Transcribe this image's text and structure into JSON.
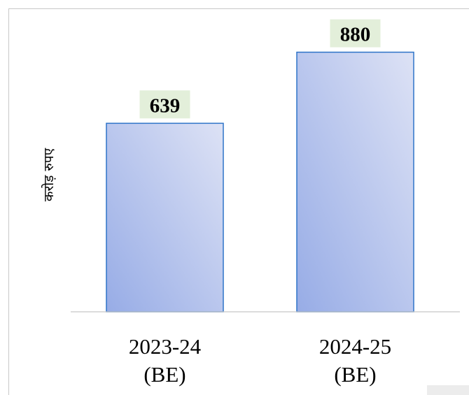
{
  "chart_data": {
    "type": "bar",
    "categories": [
      [
        "2023-24",
        "(BE)"
      ],
      [
        "2024-25",
        "(BE)"
      ]
    ],
    "values": [
      639,
      880
    ],
    "data_labels": [
      "639",
      "880"
    ],
    "title": "",
    "xlabel": "",
    "ylabel": "करोड़ रुपए",
    "ylim": [
      0,
      1000
    ],
    "grid": false,
    "legend": "none",
    "colors": {
      "bar_fill_light": "#dde2f5",
      "bar_fill_dark": "#97ace6",
      "bar_stroke": "#2e74c8",
      "label_bg": "#e3efda",
      "axis_line": "#c8c8c8"
    }
  }
}
